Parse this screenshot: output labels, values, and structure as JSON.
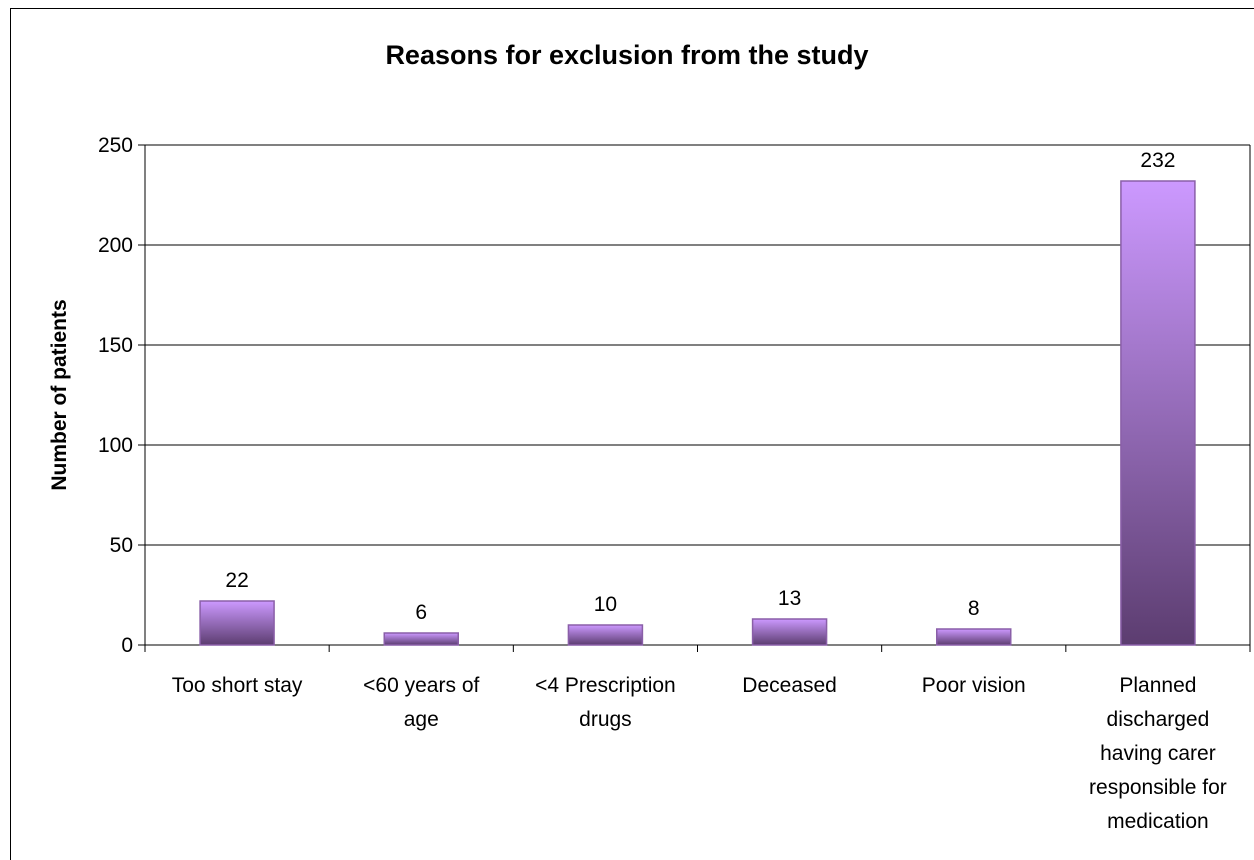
{
  "chart_data": {
    "type": "bar",
    "title": "Reasons for exclusion from the study",
    "ylabel": "Number of patients",
    "xlabel": "",
    "ylim": [
      0,
      250
    ],
    "yticks": [
      0,
      50,
      100,
      150,
      200,
      250
    ],
    "grid": true,
    "categories": [
      [
        "Too short stay"
      ],
      [
        "<60 years of",
        "age"
      ],
      [
        "<4 Prescription",
        "drugs"
      ],
      [
        "Deceased"
      ],
      [
        "Poor vision"
      ],
      [
        "Planned",
        "discharged",
        "having carer",
        "responsible for",
        "medication"
      ]
    ],
    "values": [
      22,
      6,
      10,
      13,
      8,
      232
    ],
    "colors": {
      "bar_top": "#cc99ff",
      "bar_bottom": "#5c3d70",
      "bar_edge": "#8a5fa8"
    }
  }
}
